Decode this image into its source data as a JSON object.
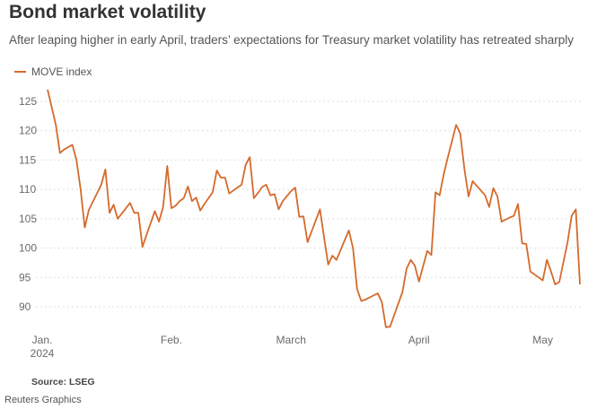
{
  "title": "Bond market volatility",
  "subtitle": "After leaping higher in early April, traders’ expectations for Treasury market volatility has retreated sharply",
  "source": "Source: LSEG",
  "credit": "Reuters Graphics",
  "colors": {
    "line": "#d56a2b",
    "grid": "#dddddd",
    "text": "#6a6a6a"
  },
  "chart_data": {
    "type": "line",
    "title": "Bond market volatility",
    "xlabel": "",
    "ylabel": "",
    "ylim": [
      85,
      129
    ],
    "yticks": [
      90,
      95,
      100,
      105,
      110,
      115,
      120,
      125
    ],
    "xticks": [
      {
        "day": 0,
        "label": "Jan.",
        "sublabel": "2024"
      },
      {
        "day": 31,
        "label": "Feb.",
        "sublabel": ""
      },
      {
        "day": 60,
        "label": "March",
        "sublabel": ""
      },
      {
        "day": 91,
        "label": "April",
        "sublabel": ""
      },
      {
        "day": 121,
        "label": "May",
        "sublabel": ""
      }
    ],
    "legend": [
      "MOVE index"
    ],
    "series": [
      {
        "name": "MOVE index",
        "points": [
          [
            1,
            127
          ],
          [
            2,
            124
          ],
          [
            3,
            121
          ],
          [
            4,
            116.2
          ],
          [
            5,
            116.8
          ],
          [
            7,
            117.6
          ],
          [
            8,
            115
          ],
          [
            9,
            110
          ],
          [
            10,
            103.5
          ],
          [
            11,
            106.5
          ],
          [
            14,
            110.8
          ],
          [
            15,
            113.4
          ],
          [
            16,
            106
          ],
          [
            17,
            107.4
          ],
          [
            18,
            105
          ],
          [
            21,
            107.7
          ],
          [
            22,
            106
          ],
          [
            23,
            106
          ],
          [
            24,
            100.2
          ],
          [
            25,
            102.3
          ],
          [
            27,
            106.3
          ],
          [
            28,
            104.5
          ],
          [
            29,
            107
          ],
          [
            30,
            114
          ],
          [
            31,
            106.8
          ],
          [
            32,
            107.2
          ],
          [
            33,
            108
          ],
          [
            34,
            108.5
          ],
          [
            35,
            110.5
          ],
          [
            36,
            108
          ],
          [
            37,
            108.6
          ],
          [
            38,
            106.4
          ],
          [
            39,
            107.5
          ],
          [
            41,
            109.5
          ],
          [
            42,
            113.2
          ],
          [
            43,
            112
          ],
          [
            44,
            112
          ],
          [
            45,
            109.3
          ],
          [
            48,
            110.8
          ],
          [
            49,
            114.2
          ],
          [
            50,
            115.5
          ],
          [
            51,
            108.5
          ],
          [
            52,
            109.4
          ],
          [
            53,
            110.4
          ],
          [
            54,
            110.8
          ],
          [
            55,
            109
          ],
          [
            56,
            109.2
          ],
          [
            57,
            106.6
          ],
          [
            58,
            108
          ],
          [
            60,
            109.7
          ],
          [
            61,
            110.3
          ],
          [
            62,
            105.3
          ],
          [
            63,
            105.4
          ],
          [
            64,
            101
          ],
          [
            67,
            106.6
          ],
          [
            68,
            101.8
          ],
          [
            69,
            97.2
          ],
          [
            70,
            98.7
          ],
          [
            71,
            98
          ],
          [
            74,
            103
          ],
          [
            75,
            100
          ],
          [
            76,
            93
          ],
          [
            77,
            91
          ],
          [
            78,
            91.2
          ],
          [
            81,
            92.3
          ],
          [
            82,
            90.8
          ],
          [
            83,
            86.5
          ],
          [
            84,
            86.6
          ],
          [
            87,
            92.5
          ],
          [
            88,
            96.5
          ],
          [
            89,
            98
          ],
          [
            90,
            97
          ],
          [
            91,
            94.3
          ],
          [
            93,
            99.5
          ],
          [
            94,
            98.8
          ],
          [
            95,
            109.5
          ],
          [
            96,
            109
          ],
          [
            97,
            112.6
          ],
          [
            98,
            115.5
          ],
          [
            100,
            121
          ],
          [
            101,
            119.5
          ],
          [
            102,
            113.5
          ],
          [
            103,
            108.8
          ],
          [
            104,
            111.4
          ],
          [
            107,
            109
          ],
          [
            108,
            107
          ],
          [
            109,
            110.2
          ],
          [
            110,
            108.8
          ],
          [
            111,
            104.5
          ],
          [
            113,
            105.2
          ],
          [
            114,
            105.5
          ],
          [
            115,
            107.5
          ],
          [
            116,
            100.8
          ],
          [
            117,
            100.7
          ],
          [
            118,
            96
          ],
          [
            120,
            95
          ],
          [
            121,
            94.5
          ],
          [
            122,
            98
          ],
          [
            123,
            96
          ],
          [
            124,
            93.8
          ],
          [
            125,
            94.2
          ],
          [
            127,
            101
          ],
          [
            128,
            105.5
          ],
          [
            129,
            106.6
          ],
          [
            130,
            93.8
          ]
        ]
      }
    ]
  }
}
